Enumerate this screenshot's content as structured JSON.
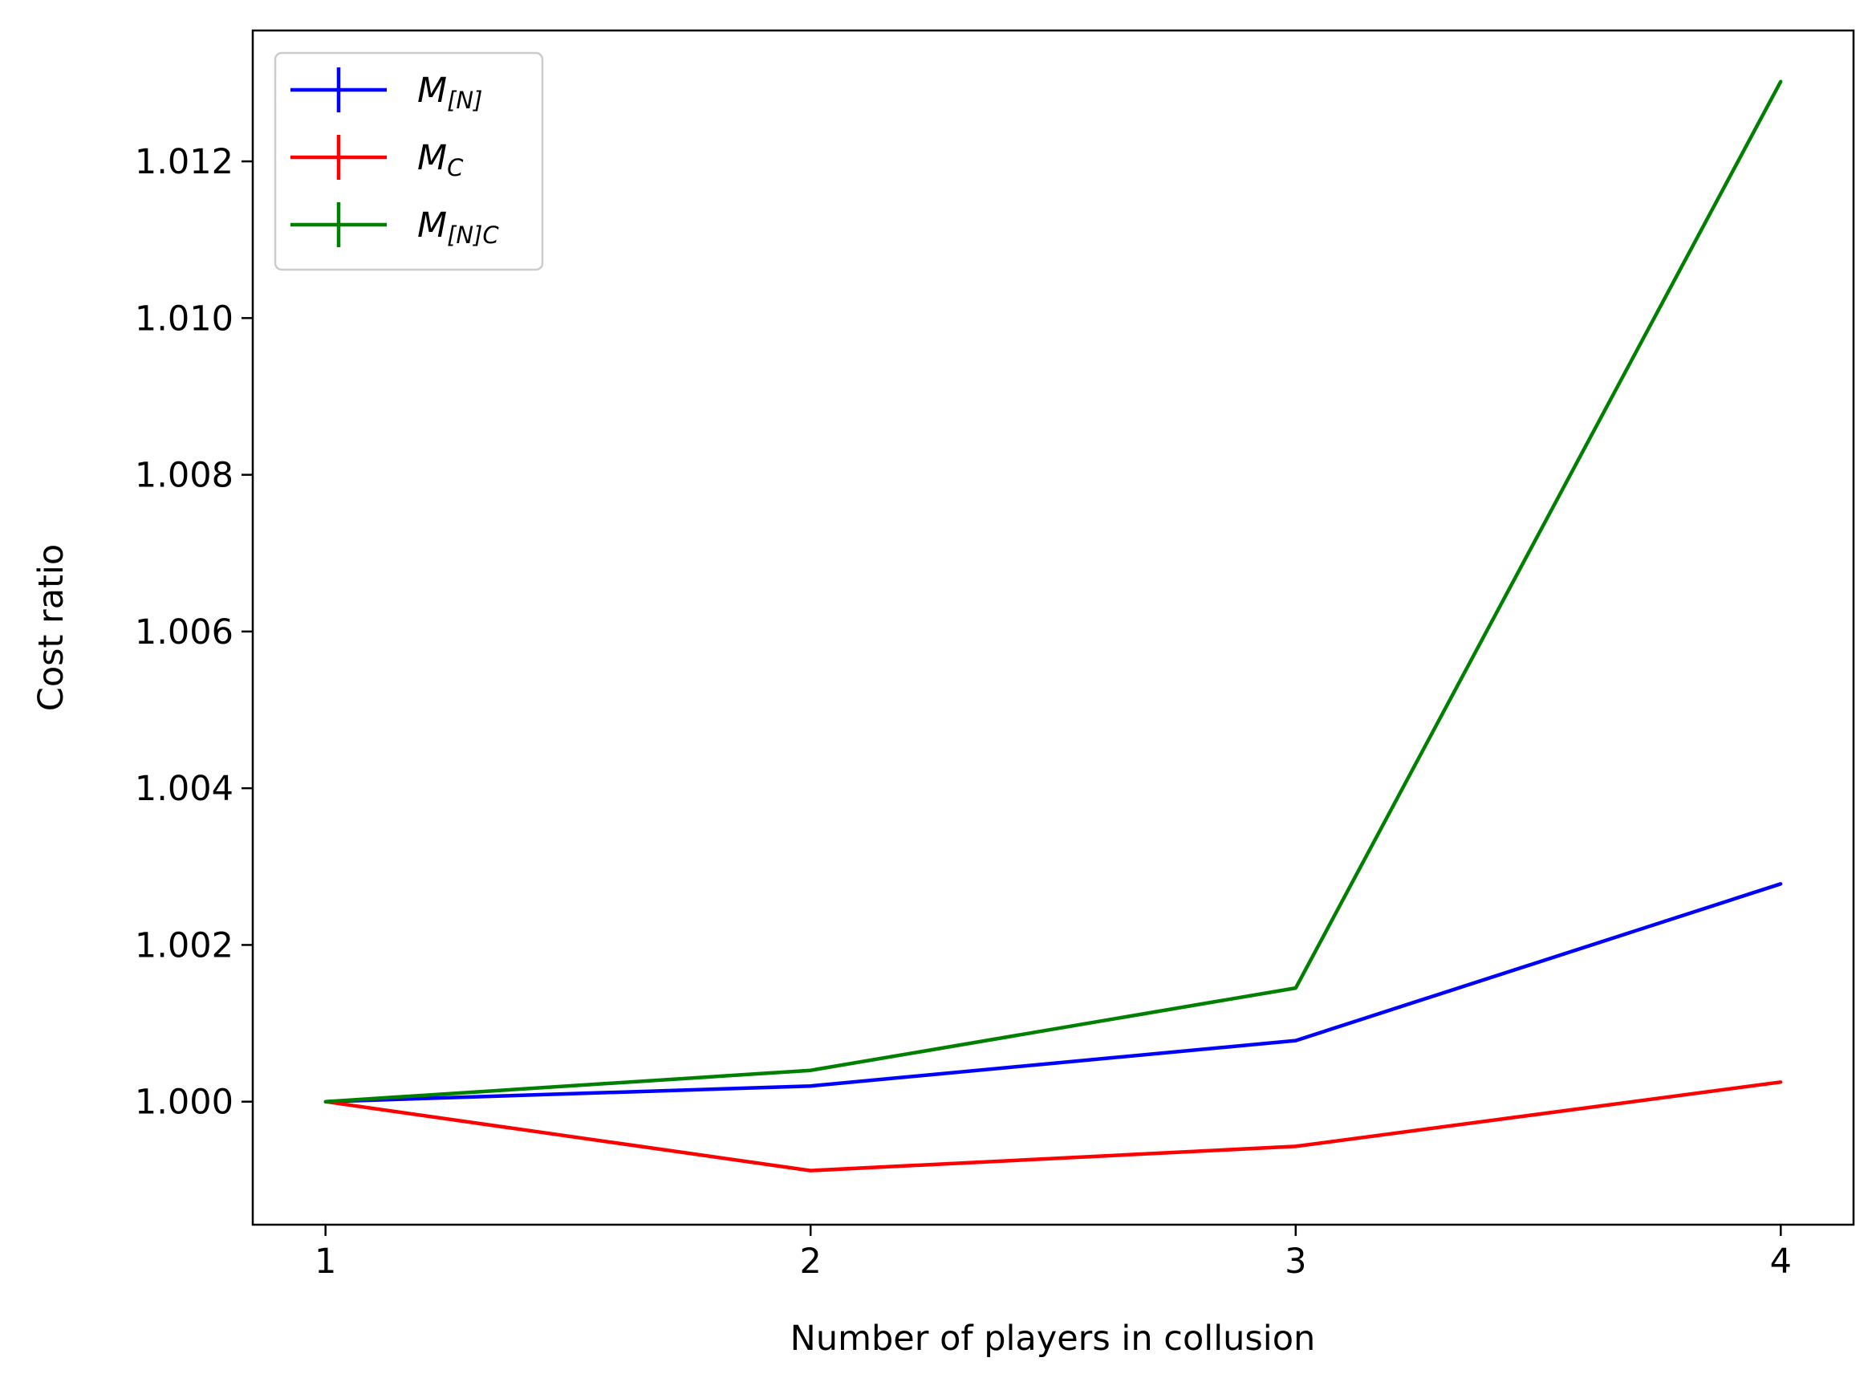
{
  "chart_data": {
    "type": "line",
    "xlabel": "Number of players in collusion",
    "ylabel": "Cost ratio",
    "x": [
      1,
      2,
      3,
      4
    ],
    "xticks": [
      "1",
      "2",
      "3",
      "4"
    ],
    "xlim": [
      0.85,
      4.15
    ],
    "ylim": [
      0.99843,
      1.01367
    ],
    "yticks": [
      "1.000",
      "1.002",
      "1.004",
      "1.006",
      "1.008",
      "1.010",
      "1.012"
    ],
    "grid": false,
    "legend_position": "upper-left",
    "series": [
      {
        "name": "M[N]",
        "legend_main": "M",
        "legend_sub": "[N]",
        "color": "#0000ff",
        "values": [
          1.0,
          1.0002,
          1.00078,
          1.00278
        ]
      },
      {
        "name": "MC",
        "legend_main": "M",
        "legend_sub": "C",
        "color": "#ff0000",
        "values": [
          1.0,
          0.99912,
          0.99943,
          1.00025
        ]
      },
      {
        "name": "M[N]C",
        "legend_main": "M",
        "legend_sub": "[N]C",
        "color": "#008000",
        "values": [
          1.0,
          1.0004,
          1.00145,
          1.01302
        ]
      }
    ]
  }
}
